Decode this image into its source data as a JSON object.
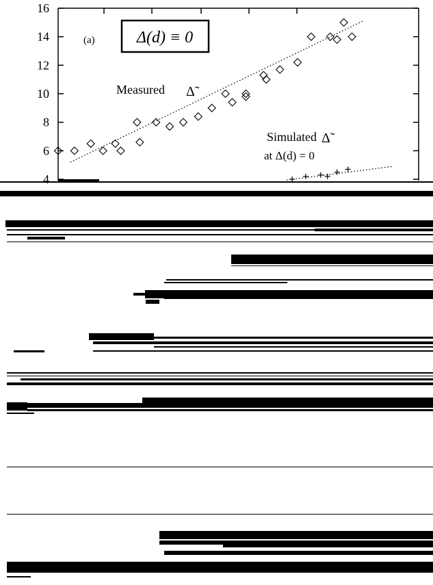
{
  "chart_data": {
    "type": "scatter",
    "panel_label": "(a)",
    "boxed_label": "Δ(d) ≡ 0",
    "ylim": [
      4,
      16
    ],
    "xlim": [
      0,
      26.5
    ],
    "y_ticks": [
      "4",
      "6",
      "8",
      "10",
      "12",
      "14",
      "16"
    ],
    "series": [
      {
        "name": "Measured Δ̃",
        "marker": "diamond",
        "points": [
          [
            0,
            6.0
          ],
          [
            1.2,
            6.0
          ],
          [
            2.4,
            6.5
          ],
          [
            3.3,
            6.0
          ],
          [
            4.2,
            6.5
          ],
          [
            4.6,
            6.0
          ],
          [
            5.8,
            8.0
          ],
          [
            6.0,
            6.6
          ],
          [
            7.2,
            8.0
          ],
          [
            8.2,
            7.7
          ],
          [
            9.2,
            8.0
          ],
          [
            10.3,
            8.4
          ],
          [
            11.3,
            9.0
          ],
          [
            12.3,
            10.0
          ],
          [
            12.8,
            9.4
          ],
          [
            13.8,
            10.0
          ],
          [
            13.8,
            9.8
          ],
          [
            15.1,
            11.3
          ],
          [
            15.3,
            11.0
          ],
          [
            16.3,
            11.7
          ],
          [
            17.6,
            12.2
          ],
          [
            18.6,
            14.0
          ],
          [
            20.0,
            14.0
          ],
          [
            20.5,
            13.8
          ],
          [
            21.0,
            15.0
          ],
          [
            21.6,
            14.0
          ]
        ],
        "trend": [
          [
            0.9,
            5.2
          ],
          [
            22.4,
            15.1
          ]
        ]
      },
      {
        "name": "Simulated Δ̃ at Δ(d) = 0",
        "marker": "plus",
        "points": [
          [
            17.2,
            4.0
          ],
          [
            18.2,
            4.2
          ],
          [
            19.3,
            4.3
          ],
          [
            19.8,
            4.2
          ],
          [
            20.5,
            4.5
          ],
          [
            21.3,
            4.7
          ]
        ],
        "trend": [
          [
            16.8,
            3.95
          ],
          [
            24.6,
            4.9
          ]
        ]
      }
    ],
    "annotations": {
      "measured": "Measured",
      "simulated_line1": "Simulated",
      "simulated_line2": "at Δ(d) = 0",
      "delta_tilde": "Δ̃"
    }
  },
  "colors": {
    "ink": "#000000",
    "paper": "#ffffff"
  }
}
